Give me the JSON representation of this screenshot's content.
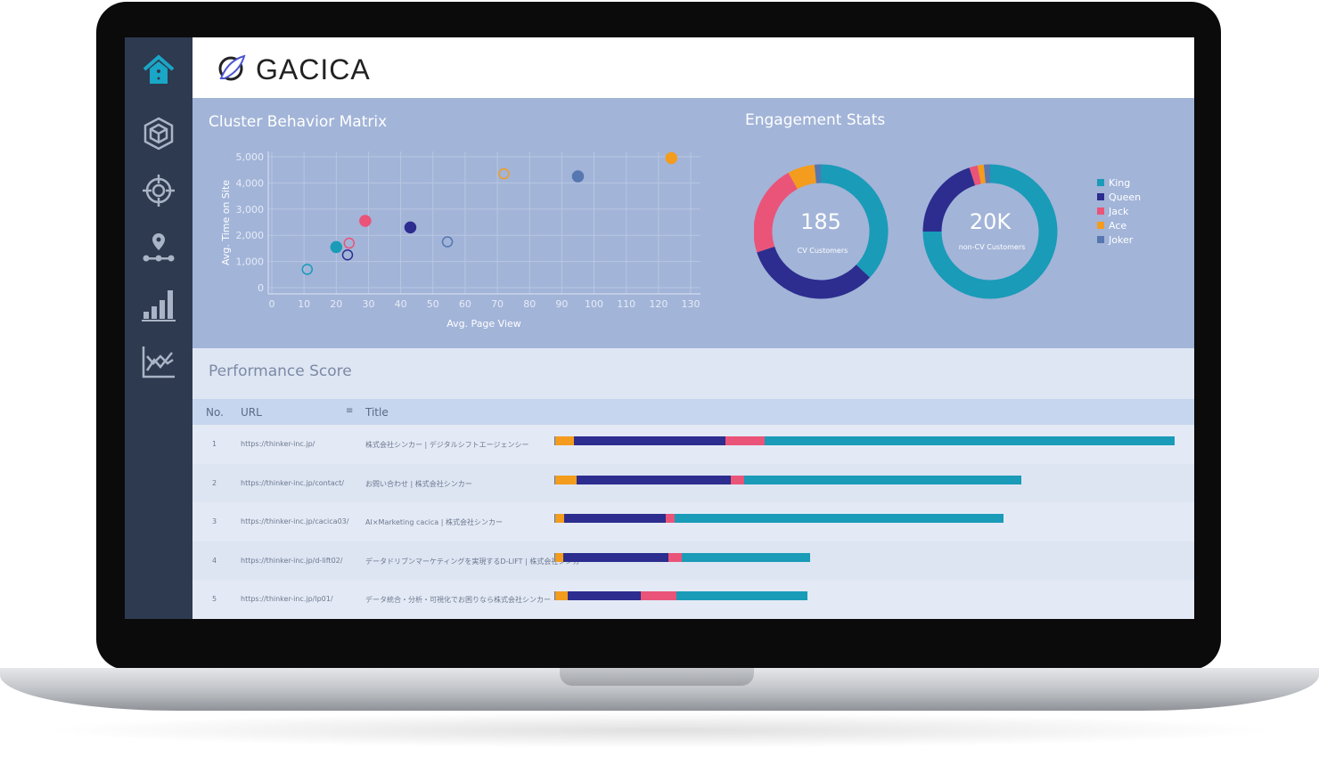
{
  "brand": {
    "logo_text": "GACICA"
  },
  "sidebar": {
    "items": [
      {
        "icon": "home-icon",
        "active": true
      },
      {
        "icon": "cube-icon"
      },
      {
        "icon": "target-icon"
      },
      {
        "icon": "map-pin-route-icon"
      },
      {
        "icon": "bar-chart-icon"
      },
      {
        "icon": "trend-chart-icon"
      }
    ]
  },
  "colors": {
    "King": "#1a9bb8",
    "Queen": "#2c2d8f",
    "Jack": "#ea5478",
    "Ace": "#f39c1d",
    "Joker": "#5677b0",
    "accent": "#1aa6c6"
  },
  "cluster": {
    "title": "Cluster Behavior Matrix"
  },
  "engagement": {
    "title": "Engagement Stats",
    "donuts": [
      {
        "value": "185",
        "label": "CV Customers",
        "shares": {
          "King": 0.37,
          "Queen": 0.33,
          "Jack": 0.22,
          "Ace": 0.065,
          "Joker": 0.015
        }
      },
      {
        "value": "20K",
        "label": "non-CV Customers",
        "shares": {
          "King": 0.75,
          "Queen": 0.2,
          "Jack": 0.02,
          "Ace": 0.015,
          "Joker": 0.015
        }
      }
    ],
    "legend": [
      "King",
      "Queen",
      "Jack",
      "Ace",
      "Joker"
    ]
  },
  "chart_data": {
    "type": "scatter",
    "xlabel": "Avg. Page View",
    "ylabel": "Avg. Time on Site",
    "xlim": [
      0,
      130
    ],
    "ylim": [
      0,
      5000
    ],
    "xticks": [
      "0",
      "10",
      "20",
      "30",
      "40",
      "50",
      "60",
      "70",
      "80",
      "90",
      "100",
      "110",
      "120",
      "130"
    ],
    "yticks": [
      "0",
      "1,000",
      "2,000",
      "3,000",
      "4,000",
      "5,000"
    ],
    "grid": true,
    "points": [
      {
        "x": 11,
        "y": 700,
        "group": "King",
        "filled": false
      },
      {
        "x": 20,
        "y": 1550,
        "group": "King",
        "filled": true
      },
      {
        "x": 23.5,
        "y": 1250,
        "group": "Queen",
        "filled": false
      },
      {
        "x": 24,
        "y": 1700,
        "group": "Jack",
        "filled": false
      },
      {
        "x": 29,
        "y": 2550,
        "group": "Jack",
        "filled": true
      },
      {
        "x": 43,
        "y": 2300,
        "group": "Queen",
        "filled": true
      },
      {
        "x": 54.5,
        "y": 1750,
        "group": "Joker",
        "filled": false
      },
      {
        "x": 72,
        "y": 4350,
        "group": "Ace",
        "filled": false
      },
      {
        "x": 95,
        "y": 4250,
        "group": "Joker",
        "filled": true
      },
      {
        "x": 124,
        "y": 4950,
        "group": "Ace",
        "filled": true
      }
    ]
  },
  "performance": {
    "title": "Performance Score",
    "columns": {
      "no": "No.",
      "url": "URL",
      "title": "Title"
    },
    "rows": [
      {
        "no": "1",
        "url": "https://thinker-inc.jp/",
        "title": "株式会社シンカー | デジタルシフトエージェンシー",
        "segments": {
          "Joker": 1,
          "Ace": 21,
          "Queen": 171,
          "Jack": 44,
          "King": 461
        }
      },
      {
        "no": "2",
        "url": "https://thinker-inc.jp/contact/",
        "title": "お問い合わせ | 株式会社シンカー",
        "segments": {
          "Joker": 1,
          "Ace": 24,
          "Queen": 174,
          "Jack": 15,
          "King": 312
        }
      },
      {
        "no": "3",
        "url": "https://thinker-inc.jp/cacica03/",
        "title": "AI×Marketing cacica | 株式会社シンカー",
        "segments": {
          "Joker": 1,
          "Ace": 10,
          "Queen": 114,
          "Jack": 10,
          "King": 370
        }
      },
      {
        "no": "4",
        "url": "https://thinker-inc.jp/d-lift02/",
        "title": "データドリブンマーケティングを実現するD-LIFT | 株式会社シンカー",
        "segments": {
          "Joker": 1,
          "Ace": 9,
          "Queen": 118,
          "Jack": 15,
          "King": 145
        }
      },
      {
        "no": "5",
        "url": "https://thinker-inc.jp/lp01/",
        "title": "データ統合・分析・可視化でお困りなら株式会社シンカー",
        "segments": {
          "Joker": 1,
          "Ace": 14,
          "Queen": 82,
          "Jack": 40,
          "King": 148
        }
      }
    ]
  }
}
